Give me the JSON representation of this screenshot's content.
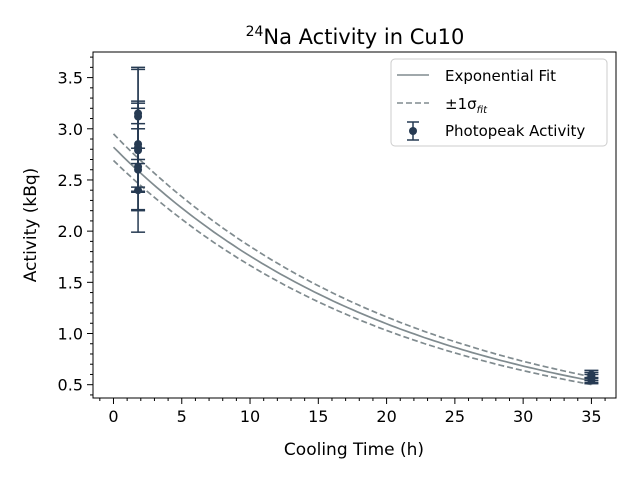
{
  "chart_data": {
    "type": "scatter",
    "title": {
      "sup": "24",
      "main": "Na Activity in Cu10"
    },
    "xlabel": "Cooling Time (h)",
    "ylabel": "Activity (kBq)",
    "xlim": [
      -1.5,
      36.8
    ],
    "ylim": [
      0.37,
      3.75
    ],
    "xticks": [
      0,
      5,
      10,
      15,
      20,
      25,
      30,
      35
    ],
    "yticks": [
      0.5,
      1.0,
      1.5,
      2.0,
      2.5,
      3.0,
      3.5
    ],
    "xtick_labels": [
      "0",
      "5",
      "10",
      "15",
      "20",
      "25",
      "30",
      "35"
    ],
    "ytick_labels": [
      "0.5",
      "1.0",
      "1.5",
      "2.0",
      "2.5",
      "3.0",
      "3.5"
    ],
    "legend_position": "top-right",
    "legend": {
      "fit": "Exponential Fit",
      "sigma": {
        "prefix": "±1σ",
        "sub": "fit"
      },
      "points": "Photopeak Activity"
    },
    "colors": {
      "fit": "#808b8f",
      "points": "#263a52"
    },
    "fit": {
      "x_range": [
        0,
        35
      ],
      "central": {
        "A0": 2.82,
        "k": 0.0473
      },
      "upper": {
        "A0": 2.95,
        "k": 0.0466
      },
      "lower": {
        "A0": 2.69,
        "k": 0.048
      }
    },
    "points": [
      {
        "x": 1.8,
        "y": 3.15,
        "err": 0.45
      },
      {
        "x": 1.8,
        "y": 3.12,
        "err": 0.46
      },
      {
        "x": 1.8,
        "y": 2.85,
        "err": 0.42
      },
      {
        "x": 1.8,
        "y": 2.82,
        "err": 0.43
      },
      {
        "x": 1.8,
        "y": 2.79,
        "err": 0.41
      },
      {
        "x": 1.8,
        "y": 2.63,
        "err": 0.42
      },
      {
        "x": 1.8,
        "y": 2.6,
        "err": 0.4
      },
      {
        "x": 1.8,
        "y": 2.4,
        "err": 0.41
      },
      {
        "x": 35.0,
        "y": 0.6,
        "err": 0.04
      },
      {
        "x": 35.0,
        "y": 0.58,
        "err": 0.04
      },
      {
        "x": 35.0,
        "y": 0.56,
        "err": 0.04
      },
      {
        "x": 35.0,
        "y": 0.54,
        "err": 0.03
      }
    ]
  }
}
